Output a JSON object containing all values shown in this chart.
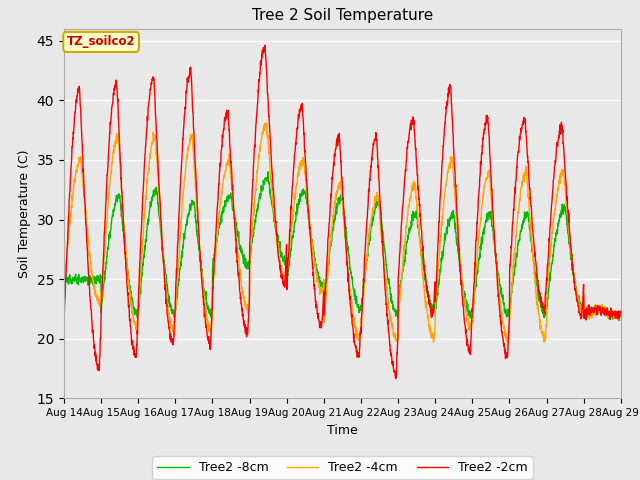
{
  "title": "Tree 2 Soil Temperature",
  "xlabel": "Time",
  "ylabel": "Soil Temperature (C)",
  "legend_label": "TZ_soilco2",
  "series_labels": [
    "Tree2 -2cm",
    "Tree2 -4cm",
    "Tree2 -8cm"
  ],
  "series_colors": [
    "#ff0000",
    "#ffa500",
    "#00bb00"
  ],
  "ylim": [
    15,
    46
  ],
  "yticks": [
    15,
    20,
    25,
    30,
    35,
    40,
    45
  ],
  "xtick_labels": [
    "Aug 14",
    "Aug 15",
    "Aug 16",
    "Aug 17",
    "Aug 18",
    "Aug 19",
    "Aug 20",
    "Aug 21",
    "Aug 22",
    "Aug 23",
    "Aug 24",
    "Aug 25",
    "Aug 26",
    "Aug 27",
    "Aug 28",
    "Aug 29"
  ],
  "background_color": "#e8e8e8",
  "plot_bg_color": "#e8e8e8",
  "grid_color": "#ffffff",
  "box_facecolor": "#ffffcc",
  "box_edgecolor": "#ccaa00",
  "legend_box_label_color": "#cc0000",
  "n_days": 15,
  "points_per_day": 144,
  "red_peaks": [
    41.0,
    41.5,
    42.0,
    42.5,
    39.0,
    44.5,
    39.5,
    37.0,
    37.0,
    38.5,
    41.0,
    38.5,
    38.5,
    37.8,
    22.5
  ],
  "red_troughs": [
    17.5,
    18.5,
    19.5,
    19.5,
    20.5,
    24.5,
    21.0,
    18.5,
    17.0,
    22.0,
    19.0,
    18.5,
    22.5,
    22.0,
    22.0
  ],
  "ora_peaks": [
    35.0,
    37.0,
    37.0,
    37.0,
    35.0,
    38.0,
    35.0,
    33.0,
    32.0,
    33.0,
    35.0,
    34.0,
    34.0,
    34.0,
    22.5
  ],
  "ora_troughs": [
    23.0,
    21.0,
    20.5,
    20.5,
    22.5,
    25.0,
    24.0,
    20.0,
    20.0,
    20.0,
    21.0,
    20.0,
    20.0,
    22.5,
    22.0
  ],
  "grn_peaks": [
    25.0,
    32.0,
    32.5,
    31.5,
    32.0,
    33.5,
    32.5,
    32.0,
    31.5,
    30.5,
    30.5,
    30.5,
    30.5,
    31.0,
    22.5
  ],
  "grn_troughs": [
    25.0,
    22.0,
    22.0,
    22.0,
    26.0,
    26.5,
    24.5,
    22.5,
    22.0,
    22.5,
    22.0,
    22.0,
    22.0,
    22.5,
    22.0
  ],
  "red_peak_phase": 0.42,
  "red_trough_phase": 0.95,
  "ora_peak_phase": 0.46,
  "ora_trough_phase": 0.97,
  "grn_peak_phase": 0.5,
  "grn_trough_phase": 0.99
}
